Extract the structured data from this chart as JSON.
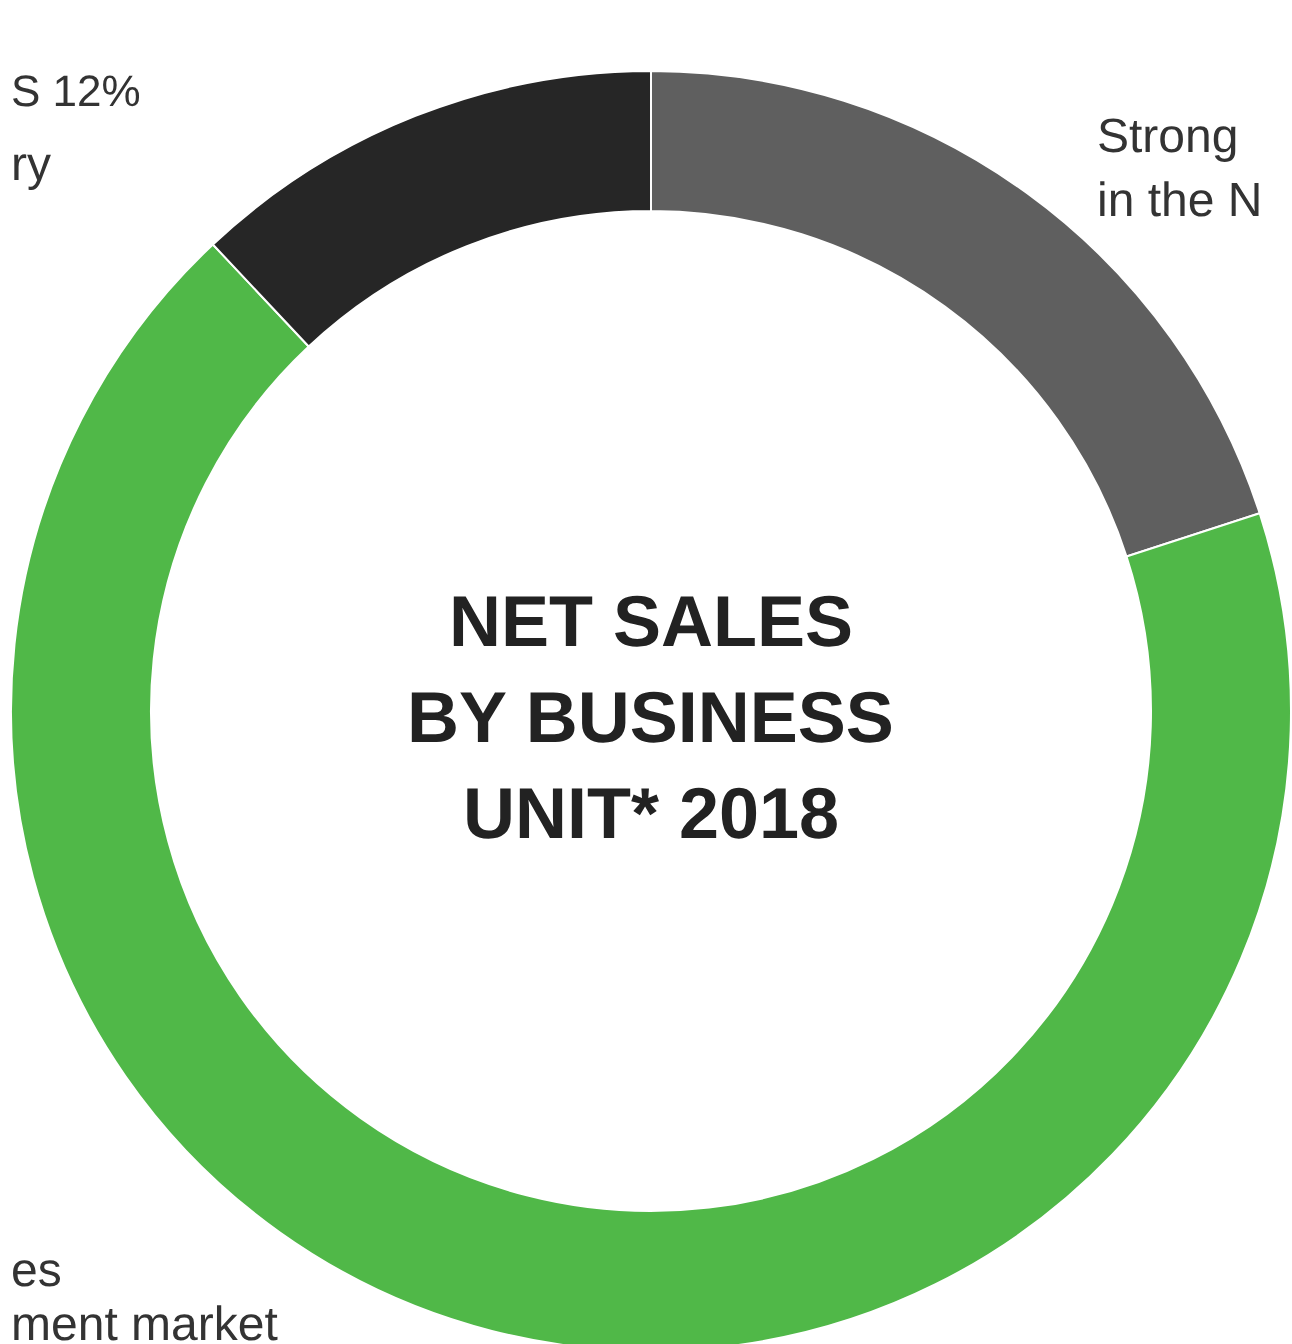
{
  "chart_data": {
    "type": "donut",
    "title": "NET SALES BY BUSINESS UNIT* 2018",
    "categories": [
      null,
      null,
      "S 12%"
    ],
    "values": [
      20,
      68,
      12
    ],
    "colors": [
      "#5f5f5f",
      "#50b848",
      "#262626"
    ],
    "annotations": [
      "ry",
      "Strong",
      "in the N",
      "es",
      "ment market"
    ]
  }
}
